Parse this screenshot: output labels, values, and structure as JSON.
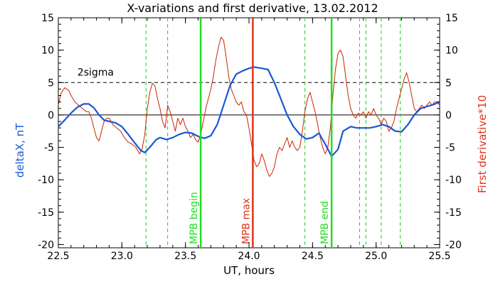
{
  "chart_data": {
    "type": "line",
    "title": "X-variations and first derivative, 13.02.2012",
    "xlabel": "UT, hours",
    "ylabel_left": "deltaX, nT",
    "ylabel_right": "First derivative*10",
    "xlim": [
      22.5,
      25.5
    ],
    "ylim": [
      -20.5,
      15
    ],
    "x_ticks": [
      22.5,
      23.0,
      23.5,
      24.0,
      24.5,
      25.0,
      25.5
    ],
    "x_tick_labels": [
      "22.5",
      "23.0",
      "23.5",
      "24.0",
      "24.5",
      "25.0",
      "25.5"
    ],
    "y_ticks": [
      -20,
      -15,
      -10,
      -5,
      0,
      5,
      10,
      15
    ],
    "y_tick_labels": [
      "-20",
      "-15",
      "-10",
      "-5",
      "0",
      "5",
      "10",
      "15"
    ],
    "y2_ticks": [
      -20,
      -15,
      -10,
      -5,
      0,
      5,
      10,
      15
    ],
    "y2_tick_labels": [
      "-20",
      "-15",
      "-10",
      "-5",
      "0",
      "5",
      "10",
      "15"
    ],
    "colors": {
      "deltaX": "#1a56d6",
      "derivative": "#cc2200",
      "mpb_begin_end": "#22dd22",
      "mpb_max": "#e0321a",
      "dashed_green": "#22cc22",
      "sigma": "#000000"
    },
    "sigma_line": {
      "y": 5,
      "label": "2sigma"
    },
    "zero_line": {
      "y": 0
    },
    "markers": [
      {
        "x": 23.62,
        "label": "MPB begin",
        "style": "solid",
        "color": "#22dd22"
      },
      {
        "x": 24.03,
        "label": "MPB max",
        "style": "solid",
        "color": "#e0321a"
      },
      {
        "x": 24.65,
        "label": "MPB end",
        "style": "solid",
        "color": "#22dd22"
      }
    ],
    "dashed_verticals": [
      23.19,
      23.36,
      24.44,
      24.87,
      24.92,
      25.04,
      25.19
    ],
    "series": [
      {
        "role": "deltaX",
        "axis": "left",
        "points": [
          [
            22.5,
            -1.8
          ],
          [
            22.55,
            -0.8
          ],
          [
            22.6,
            0.3
          ],
          [
            22.65,
            1.2
          ],
          [
            22.7,
            1.7
          ],
          [
            22.74,
            1.7
          ],
          [
            22.78,
            1.1
          ],
          [
            22.82,
            0.0
          ],
          [
            22.86,
            -0.8
          ],
          [
            22.9,
            -1.0
          ],
          [
            22.95,
            -1.2
          ],
          [
            23.0,
            -1.8
          ],
          [
            23.05,
            -3.0
          ],
          [
            23.1,
            -4.3
          ],
          [
            23.15,
            -5.5
          ],
          [
            23.18,
            -5.8
          ],
          [
            23.22,
            -5.0
          ],
          [
            23.27,
            -3.8
          ],
          [
            23.3,
            -3.5
          ],
          [
            23.35,
            -3.8
          ],
          [
            23.4,
            -3.5
          ],
          [
            23.45,
            -3.0
          ],
          [
            23.5,
            -2.7
          ],
          [
            23.55,
            -2.8
          ],
          [
            23.6,
            -3.3
          ],
          [
            23.65,
            -3.6
          ],
          [
            23.7,
            -3.2
          ],
          [
            23.75,
            -1.5
          ],
          [
            23.8,
            1.5
          ],
          [
            23.85,
            4.5
          ],
          [
            23.9,
            6.3
          ],
          [
            23.95,
            6.8
          ],
          [
            24.0,
            7.2
          ],
          [
            24.04,
            7.4
          ],
          [
            24.1,
            7.2
          ],
          [
            24.15,
            7.0
          ],
          [
            24.2,
            5.0
          ],
          [
            24.25,
            2.5
          ],
          [
            24.3,
            0.0
          ],
          [
            24.35,
            -1.8
          ],
          [
            24.4,
            -3.0
          ],
          [
            24.45,
            -3.7
          ],
          [
            24.5,
            -3.5
          ],
          [
            24.55,
            -2.8
          ],
          [
            24.6,
            -4.5
          ],
          [
            24.65,
            -6.4
          ],
          [
            24.7,
            -5.3
          ],
          [
            24.74,
            -2.5
          ],
          [
            24.8,
            -1.8
          ],
          [
            24.85,
            -2.0
          ],
          [
            24.9,
            -2.0
          ],
          [
            24.95,
            -2.0
          ],
          [
            25.0,
            -1.8
          ],
          [
            25.05,
            -1.5
          ],
          [
            25.1,
            -1.8
          ],
          [
            25.15,
            -2.5
          ],
          [
            25.2,
            -2.6
          ],
          [
            25.25,
            -1.5
          ],
          [
            25.3,
            0.0
          ],
          [
            25.35,
            1.0
          ],
          [
            25.4,
            1.3
          ],
          [
            25.45,
            1.6
          ],
          [
            25.5,
            2.0
          ]
        ]
      },
      {
        "role": "derivative",
        "axis": "right",
        "points": [
          [
            22.5,
            1.5
          ],
          [
            22.52,
            3.3
          ],
          [
            22.55,
            4.2
          ],
          [
            22.58,
            3.8
          ],
          [
            22.6,
            3.0
          ],
          [
            22.63,
            2.0
          ],
          [
            22.66,
            1.5
          ],
          [
            22.69,
            1.0
          ],
          [
            22.72,
            0.5
          ],
          [
            22.74,
            0.5
          ],
          [
            22.76,
            -0.5
          ],
          [
            22.78,
            -2.0
          ],
          [
            22.8,
            -3.5
          ],
          [
            22.82,
            -4.0
          ],
          [
            22.84,
            -2.5
          ],
          [
            22.86,
            -1.0
          ],
          [
            22.88,
            -0.5
          ],
          [
            22.9,
            -0.5
          ],
          [
            22.93,
            -1.5
          ],
          [
            22.96,
            -2.0
          ],
          [
            22.99,
            -2.5
          ],
          [
            23.02,
            -3.5
          ],
          [
            23.05,
            -4.2
          ],
          [
            23.08,
            -4.5
          ],
          [
            23.11,
            -5.0
          ],
          [
            23.14,
            -6.0
          ],
          [
            23.16,
            -5.2
          ],
          [
            23.18,
            -3.0
          ],
          [
            23.2,
            1.0
          ],
          [
            23.22,
            3.5
          ],
          [
            23.24,
            4.9
          ],
          [
            23.26,
            4.5
          ],
          [
            23.28,
            2.5
          ],
          [
            23.3,
            1.0
          ],
          [
            23.32,
            -1.0
          ],
          [
            23.34,
            -2.0
          ],
          [
            23.36,
            1.5
          ],
          [
            23.38,
            0.5
          ],
          [
            23.4,
            -1.0
          ],
          [
            23.42,
            -2.5
          ],
          [
            23.44,
            -0.5
          ],
          [
            23.46,
            -1.5
          ],
          [
            23.48,
            -0.5
          ],
          [
            23.5,
            -1.8
          ],
          [
            23.52,
            -2.5
          ],
          [
            23.54,
            -3.5
          ],
          [
            23.56,
            -3.0
          ],
          [
            23.58,
            -3.8
          ],
          [
            23.6,
            -4.2
          ],
          [
            23.62,
            -3.0
          ],
          [
            23.64,
            -1.0
          ],
          [
            23.66,
            1.0
          ],
          [
            23.68,
            2.5
          ],
          [
            23.7,
            4.0
          ],
          [
            23.72,
            6.0
          ],
          [
            23.74,
            8.5
          ],
          [
            23.76,
            10.5
          ],
          [
            23.78,
            12.0
          ],
          [
            23.8,
            11.5
          ],
          [
            23.82,
            9.0
          ],
          [
            23.84,
            6.0
          ],
          [
            23.86,
            4.0
          ],
          [
            23.88,
            3.0
          ],
          [
            23.9,
            2.0
          ],
          [
            23.92,
            1.5
          ],
          [
            23.94,
            2.0
          ],
          [
            23.96,
            0.5
          ],
          [
            23.98,
            0.0
          ],
          [
            24.0,
            -2.0
          ],
          [
            24.02,
            -4.5
          ],
          [
            24.04,
            -7.0
          ],
          [
            24.06,
            -8.0
          ],
          [
            24.08,
            -7.5
          ],
          [
            24.1,
            -6.0
          ],
          [
            24.12,
            -7.0
          ],
          [
            24.14,
            -8.5
          ],
          [
            24.16,
            -9.5
          ],
          [
            24.18,
            -9.0
          ],
          [
            24.2,
            -8.0
          ],
          [
            24.22,
            -6.0
          ],
          [
            24.24,
            -5.0
          ],
          [
            24.26,
            -5.5
          ],
          [
            24.28,
            -4.5
          ],
          [
            24.3,
            -3.5
          ],
          [
            24.32,
            -5.0
          ],
          [
            24.34,
            -4.0
          ],
          [
            24.36,
            -5.0
          ],
          [
            24.38,
            -5.5
          ],
          [
            24.4,
            -5.0
          ],
          [
            24.42,
            -2.5
          ],
          [
            24.44,
            0.5
          ],
          [
            24.46,
            2.5
          ],
          [
            24.48,
            3.5
          ],
          [
            24.5,
            2.0
          ],
          [
            24.52,
            0.5
          ],
          [
            24.54,
            -1.5
          ],
          [
            24.56,
            -3.5
          ],
          [
            24.58,
            -5.0
          ],
          [
            24.6,
            -6.0
          ],
          [
            24.62,
            -5.0
          ],
          [
            24.64,
            -2.0
          ],
          [
            24.66,
            3.0
          ],
          [
            24.68,
            7.0
          ],
          [
            24.7,
            9.5
          ],
          [
            24.72,
            10.0
          ],
          [
            24.74,
            9.0
          ],
          [
            24.76,
            6.0
          ],
          [
            24.78,
            3.0
          ],
          [
            24.8,
            1.0
          ],
          [
            24.82,
            0.0
          ],
          [
            24.84,
            -0.5
          ],
          [
            24.86,
            0.3
          ],
          [
            24.88,
            0.0
          ],
          [
            24.9,
            0.5
          ],
          [
            24.92,
            -0.5
          ],
          [
            24.94,
            0.5
          ],
          [
            24.96,
            0.0
          ],
          [
            24.98,
            1.0
          ],
          [
            25.0,
            0.0
          ],
          [
            25.02,
            -0.5
          ],
          [
            25.04,
            -1.5
          ],
          [
            25.06,
            -0.5
          ],
          [
            25.08,
            -1.0
          ],
          [
            25.1,
            -2.5
          ],
          [
            25.12,
            -2.0
          ],
          [
            25.14,
            -1.0
          ],
          [
            25.16,
            1.0
          ],
          [
            25.18,
            2.5
          ],
          [
            25.2,
            4.0
          ],
          [
            25.22,
            5.5
          ],
          [
            25.24,
            6.5
          ],
          [
            25.26,
            5.0
          ],
          [
            25.28,
            3.0
          ],
          [
            25.3,
            1.0
          ],
          [
            25.32,
            0.5
          ],
          [
            25.34,
            1.0
          ],
          [
            25.36,
            1.5
          ],
          [
            25.38,
            1.0
          ],
          [
            25.4,
            1.5
          ],
          [
            25.42,
            2.0
          ],
          [
            25.44,
            1.5
          ],
          [
            25.46,
            2.0
          ],
          [
            25.48,
            2.0
          ],
          [
            25.5,
            1.5
          ]
        ]
      }
    ]
  }
}
